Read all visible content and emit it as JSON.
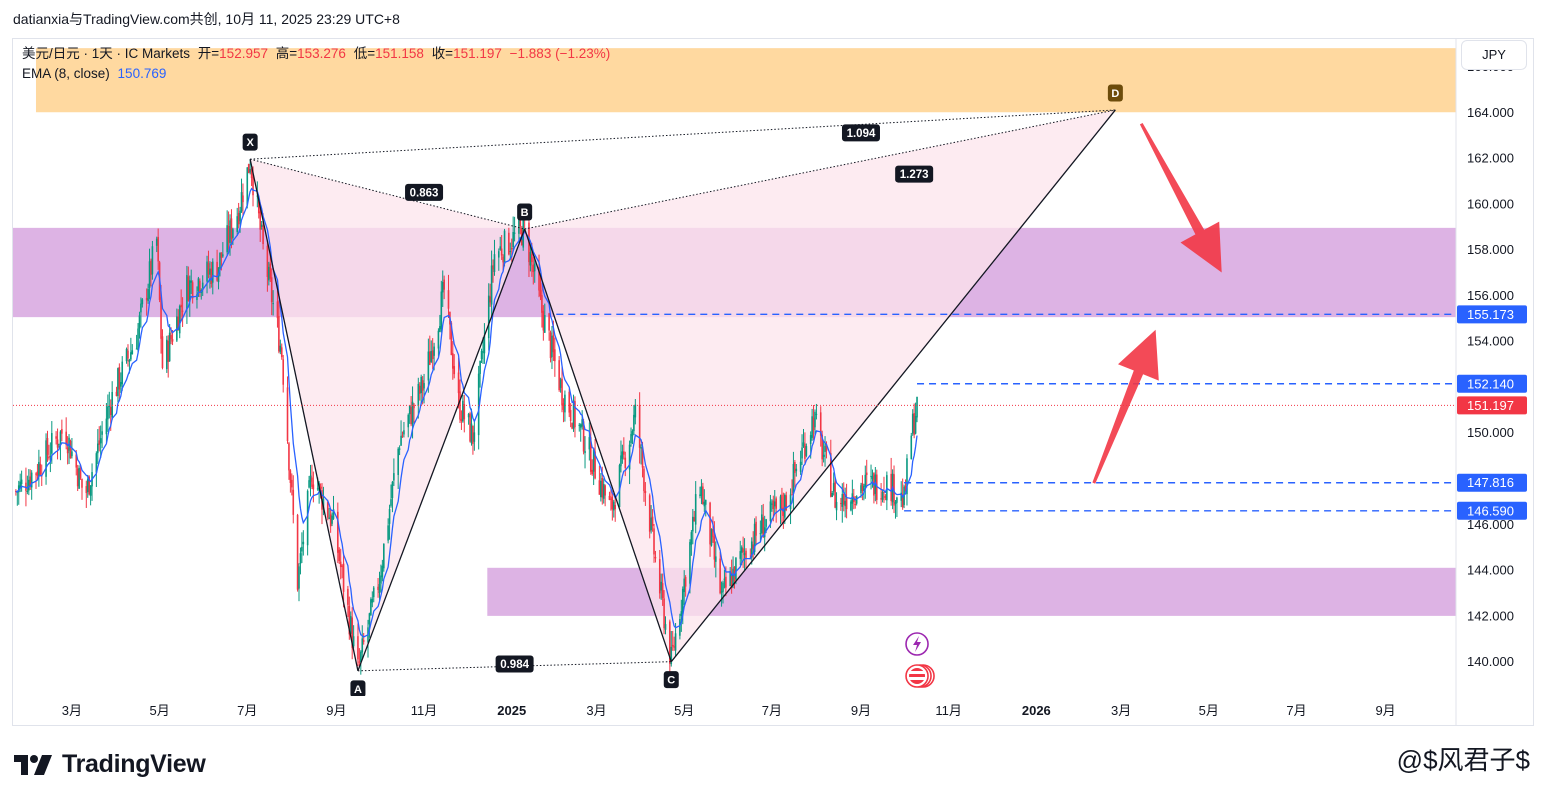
{
  "header": {
    "publisher_line": "datianxia与TradingView.com共创, 10月 11, 2025 23:29 UTC+8"
  },
  "legend": {
    "symbol": "美元/日元 · 1天 · IC Markets",
    "open_label": "开=",
    "open": "152.957",
    "high_label": "高=",
    "high": "153.276",
    "low_label": "低=",
    "low": "151.158",
    "close_label": "收=",
    "close": "151.197",
    "change": "−1.883 (−1.23%)",
    "ema_label": "EMA (8, close)",
    "ema_value": "150.769"
  },
  "currency_button": "JPY",
  "colors": {
    "up": "#089981",
    "down": "#f23645",
    "ema": "#2962ff",
    "orange_zone": "#ffcc80",
    "purple_zone": "#ce93d8",
    "pattern_fill": "#fce4ec",
    "arrow": "#f23645",
    "level_line": "#2962ff"
  },
  "chart_data": {
    "type": "candlestick",
    "instrument": "USD/JPY daily",
    "y_range": [
      138.5,
      167.2
    ],
    "x_range": [
      "2024-01-20",
      "2026-10-20"
    ],
    "x_ticks": [
      {
        "date": "2024-03-01",
        "label": "3月"
      },
      {
        "date": "2024-05-01",
        "label": "5月"
      },
      {
        "date": "2024-07-01",
        "label": "7月"
      },
      {
        "date": "2024-09-01",
        "label": "9月"
      },
      {
        "date": "2024-11-01",
        "label": "11月"
      },
      {
        "date": "2025-01-01",
        "label": "2025",
        "bold": true
      },
      {
        "date": "2025-03-01",
        "label": "3月"
      },
      {
        "date": "2025-05-01",
        "label": "5月"
      },
      {
        "date": "2025-07-01",
        "label": "7月"
      },
      {
        "date": "2025-09-01",
        "label": "9月"
      },
      {
        "date": "2025-11-01",
        "label": "11月"
      },
      {
        "date": "2026-01-01",
        "label": "2026",
        "bold": true
      },
      {
        "date": "2026-03-01",
        "label": "3月"
      },
      {
        "date": "2026-05-01",
        "label": "5月"
      },
      {
        "date": "2026-07-01",
        "label": "7月"
      },
      {
        "date": "2026-09-01",
        "label": "9月"
      }
    ],
    "y_ticks": [
      "140.000",
      "142.000",
      "144.000",
      "146.000",
      "148.000",
      "150.000",
      "152.000",
      "154.000",
      "156.000",
      "158.000",
      "160.000",
      "162.000",
      "164.000",
      "166.000"
    ],
    "price_path": [
      [
        "2024-01-20",
        147.3
      ],
      [
        "2024-02-05",
        148.4
      ],
      [
        "2024-02-25",
        150.2
      ],
      [
        "2024-03-10",
        147.2
      ],
      [
        "2024-03-28",
        151.4
      ],
      [
        "2024-04-15",
        154.2
      ],
      [
        "2024-04-29",
        158.4
      ],
      [
        "2024-05-03",
        152.9
      ],
      [
        "2024-05-20",
        156.4
      ],
      [
        "2024-06-10",
        157.2
      ],
      [
        "2024-06-25",
        159.8
      ],
      [
        "2024-07-03",
        161.9
      ],
      [
        "2024-07-12",
        158.0
      ],
      [
        "2024-07-25",
        153.5
      ],
      [
        "2024-08-05",
        143.5
      ],
      [
        "2024-08-15",
        148.2
      ],
      [
        "2024-08-30",
        146.0
      ],
      [
        "2024-09-16",
        139.6
      ],
      [
        "2024-10-01",
        143.7
      ],
      [
        "2024-10-15",
        149.7
      ],
      [
        "2024-11-01",
        152.2
      ],
      [
        "2024-11-15",
        156.2
      ],
      [
        "2024-11-25",
        151.3
      ],
      [
        "2024-12-05",
        149.8
      ],
      [
        "2024-12-20",
        157.8
      ],
      [
        "2025-01-10",
        158.9
      ],
      [
        "2025-01-20",
        155.8
      ],
      [
        "2025-02-05",
        151.8
      ],
      [
        "2025-02-20",
        149.8
      ],
      [
        "2025-03-11",
        146.6
      ],
      [
        "2025-03-28",
        150.8
      ],
      [
        "2025-04-10",
        144.8
      ],
      [
        "2025-04-22",
        140.0
      ],
      [
        "2025-05-12",
        147.8
      ],
      [
        "2025-05-27",
        142.8
      ],
      [
        "2025-06-10",
        144.6
      ],
      [
        "2025-06-25",
        146.0
      ],
      [
        "2025-07-10",
        146.9
      ],
      [
        "2025-07-30",
        150.7
      ],
      [
        "2025-08-15",
        146.9
      ],
      [
        "2025-09-01",
        147.7
      ],
      [
        "2025-09-20",
        147.8
      ],
      [
        "2025-10-01",
        147.0
      ],
      [
        "2025-10-06",
        150.0
      ],
      [
        "2025-10-10",
        151.2
      ]
    ],
    "last_price": 151.197,
    "harmonic_pattern": {
      "points": [
        {
          "label": "X",
          "date": "2024-07-03",
          "price": 161.95
        },
        {
          "label": "A",
          "date": "2024-09-16",
          "price": 139.6
        },
        {
          "label": "B",
          "date": "2025-01-10",
          "price": 158.9
        },
        {
          "label": "C",
          "date": "2025-04-22",
          "price": 140.0
        },
        {
          "label": "D",
          "date": "2026-02-25",
          "price": 164.1
        }
      ],
      "ratios": [
        {
          "value": "0.863",
          "date": "2024-11-01",
          "price": 160.5
        },
        {
          "value": "0.984",
          "date": "2025-01-03",
          "price": 139.9
        },
        {
          "value": "1.273",
          "date": "2025-10-08",
          "price": 161.3
        },
        {
          "value": "1.094",
          "date": "2025-09-01",
          "price": 163.1
        }
      ]
    },
    "zones": [
      {
        "from": "2024-01-20",
        "to": "2026-10-20",
        "low": 155.05,
        "high": 158.95,
        "color": "purple"
      },
      {
        "from": "2024-12-15",
        "to": "2026-10-20",
        "low": 142.0,
        "high": 144.1,
        "color": "purple"
      },
      {
        "from": "2024-02-05",
        "to": "2026-10-20",
        "low": 164.0,
        "high": 166.8,
        "color": "orange"
      }
    ],
    "levels": [
      {
        "price": 155.173,
        "from": "2025-02-01"
      },
      {
        "price": 152.14,
        "from": "2025-10-10"
      },
      {
        "price": 147.816,
        "from": "2025-10-01"
      },
      {
        "price": 146.59,
        "from": "2025-10-01"
      }
    ],
    "price_labels": [
      {
        "value": "155.173",
        "price": 155.173,
        "color": "blue"
      },
      {
        "value": "152.140",
        "price": 152.14,
        "color": "blue"
      },
      {
        "value": "151.197",
        "price": 151.197,
        "color": "red"
      },
      {
        "value": "147.816",
        "price": 147.816,
        "color": "blue"
      },
      {
        "value": "146.590",
        "price": 146.59,
        "color": "blue"
      }
    ],
    "arrows": [
      {
        "direction": "down",
        "from": [
          "2026-03-15",
          163.5
        ],
        "to": [
          "2026-05-10",
          157.0
        ]
      },
      {
        "direction": "up",
        "from": [
          "2026-02-10",
          147.8
        ],
        "to": [
          "2026-03-25",
          154.5
        ]
      }
    ]
  },
  "footer": {
    "brand": "TradingView",
    "watermark": "@$风君子$"
  }
}
